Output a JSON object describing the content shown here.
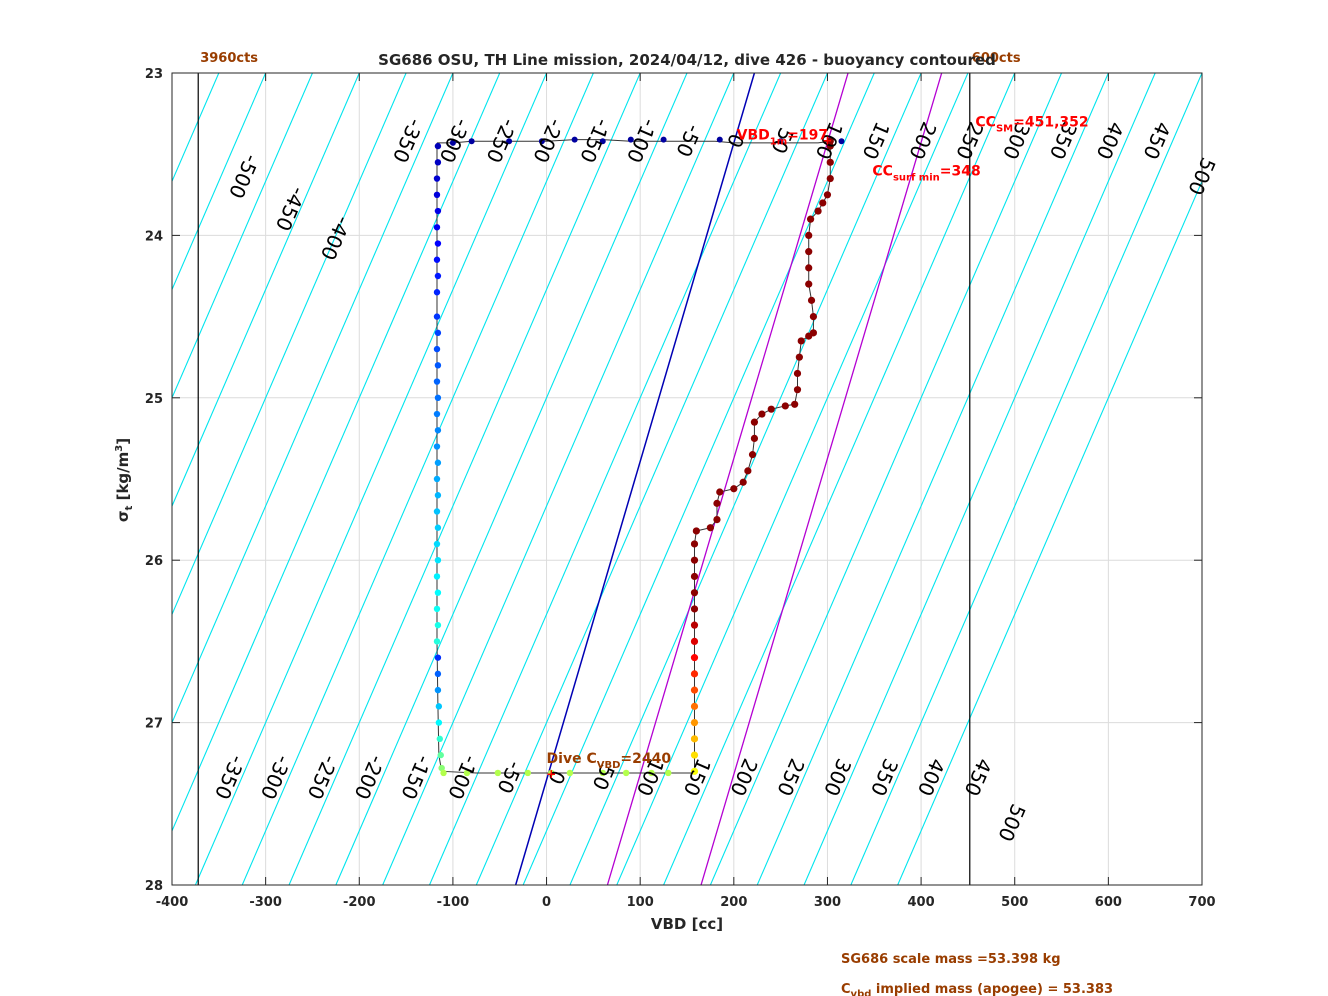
{
  "chart_data": {
    "type": "scatter",
    "title": "SG686 OSU, TH Line mission, 2024/04/12, dive 426 - buoyancy contoured",
    "xlabel": "VBD [cc]",
    "ylabel_main": "σ",
    "ylabel_sub": "t",
    "ylabel_unit": " [kg/m",
    "ylabel_sup": "3",
    "ylabel_close": "]",
    "xlim": [
      -400,
      700
    ],
    "ylim": [
      23,
      28
    ],
    "y_reversed": true,
    "grid": true,
    "xticks": [
      -400,
      -300,
      -200,
      -100,
      0,
      100,
      200,
      300,
      400,
      500,
      600,
      700
    ],
    "yticks": [
      23,
      24,
      25,
      26,
      27,
      28
    ],
    "vlines": [
      {
        "x": -372,
        "label": "3960cts"
      },
      {
        "x": 452,
        "label": "600cts"
      }
    ],
    "contour_slope_per_sigma": -75,
    "contour_levels": [
      -550,
      -500,
      -450,
      -400,
      -350,
      -300,
      -250,
      -200,
      -150,
      -100,
      -50,
      0,
      50,
      100,
      150,
      200,
      250,
      300,
      350,
      400,
      450,
      500,
      550,
      600,
      650,
      700,
      750
    ],
    "top_contour_labels": [
      {
        "level": -500,
        "x": -330,
        "y": 23.62
      },
      {
        "level": -450,
        "x": -280,
        "y": 23.82
      },
      {
        "level": -400,
        "x": -232,
        "y": 24.0
      },
      {
        "level": -350,
        "x": -155,
        "y": 23.4
      },
      {
        "level": -300,
        "x": -105,
        "y": 23.4
      },
      {
        "level": -250,
        "x": -55,
        "y": 23.4
      },
      {
        "level": -200,
        "x": -5,
        "y": 23.4
      },
      {
        "level": -150,
        "x": 45,
        "y": 23.4
      },
      {
        "level": -100,
        "x": 95,
        "y": 23.4
      },
      {
        "level": -50,
        "x": 145,
        "y": 23.4
      },
      {
        "level": 0,
        "x": 195,
        "y": 23.4
      },
      {
        "level": 50,
        "x": 245,
        "y": 23.4
      },
      {
        "level": 100,
        "x": 295,
        "y": 23.4
      },
      {
        "level": 150,
        "x": 345,
        "y": 23.4
      },
      {
        "level": 200,
        "x": 395,
        "y": 23.4
      },
      {
        "level": 250,
        "x": 445,
        "y": 23.4
      },
      {
        "level": 300,
        "x": 495,
        "y": 23.4
      },
      {
        "level": 350,
        "x": 545,
        "y": 23.4
      },
      {
        "level": 400,
        "x": 595,
        "y": 23.4
      },
      {
        "level": 450,
        "x": 645,
        "y": 23.4
      },
      {
        "level": 500,
        "x": 693,
        "y": 23.62
      }
    ],
    "bottom_contour_labels": [
      {
        "level": -350,
        "x": -345,
        "y": 27.32
      },
      {
        "level": -300,
        "x": -296,
        "y": 27.32
      },
      {
        "level": -250,
        "x": -246,
        "y": 27.32
      },
      {
        "level": -200,
        "x": -196,
        "y": 27.32
      },
      {
        "level": -150,
        "x": -146,
        "y": 27.32
      },
      {
        "level": -100,
        "x": -96,
        "y": 27.32
      },
      {
        "level": -50,
        "x": -46,
        "y": 27.32
      },
      {
        "level": 0,
        "x": 4,
        "y": 27.32
      },
      {
        "level": 50,
        "x": 54,
        "y": 27.32
      },
      {
        "level": 100,
        "x": 104,
        "y": 27.32
      },
      {
        "level": 150,
        "x": 154,
        "y": 27.32
      },
      {
        "level": 200,
        "x": 204,
        "y": 27.32
      },
      {
        "level": 250,
        "x": 254,
        "y": 27.32
      },
      {
        "level": 300,
        "x": 304,
        "y": 27.32
      },
      {
        "level": 350,
        "x": 354,
        "y": 27.32
      },
      {
        "level": 400,
        "x": 404,
        "y": 27.32
      },
      {
        "level": 450,
        "x": 454,
        "y": 27.32
      },
      {
        "level": 500,
        "x": 490,
        "y": 27.6
      }
    ],
    "blue_line": {
      "x1": -33,
      "y1": 28.0,
      "x2": 222,
      "y2": 23.0
    },
    "purple_lines": [
      {
        "x1": 65,
        "y1": 28.0,
        "x2": 322,
        "y2": 23.0
      },
      {
        "x1": 165,
        "y1": 28.0,
        "x2": 422,
        "y2": 23.0
      }
    ],
    "dive_profile": [
      [
        -117,
        23.43
      ],
      [
        -117,
        24.5
      ],
      [
        -117,
        25.5
      ],
      [
        -117,
        26.5
      ],
      [
        -116,
        26.9
      ],
      [
        -115,
        27.2
      ],
      [
        -112,
        27.3
      ],
      [
        -75,
        27.31
      ],
      [
        -20,
        27.31
      ],
      [
        40,
        27.31
      ],
      [
        100,
        27.31
      ],
      [
        155,
        27.31
      ]
    ],
    "dive_points": [
      [
        -116,
        23.45
      ],
      [
        -116,
        23.55
      ],
      [
        -117,
        23.65
      ],
      [
        -117,
        23.75
      ],
      [
        -116,
        23.85
      ],
      [
        -117,
        23.95
      ],
      [
        -116,
        24.05
      ],
      [
        -117,
        24.15
      ],
      [
        -116,
        24.25
      ],
      [
        -117,
        24.35
      ],
      [
        -117,
        24.5
      ],
      [
        -116,
        24.6
      ],
      [
        -117,
        24.7
      ],
      [
        -116,
        24.8
      ],
      [
        -117,
        24.9
      ],
      [
        -116,
        25.0
      ],
      [
        -117,
        25.1
      ],
      [
        -116,
        25.2
      ],
      [
        -117,
        25.3
      ],
      [
        -116,
        25.4
      ],
      [
        -117,
        25.5
      ],
      [
        -116,
        25.6
      ],
      [
        -117,
        25.7
      ],
      [
        -116,
        25.8
      ],
      [
        -117,
        25.9
      ],
      [
        -116,
        26.0
      ],
      [
        -117,
        26.1
      ],
      [
        -116,
        26.2
      ],
      [
        -117,
        26.3
      ],
      [
        -116,
        26.4
      ],
      [
        -117,
        26.5
      ],
      [
        -116,
        26.6
      ],
      [
        -116,
        26.7
      ],
      [
        -116,
        26.8
      ],
      [
        -115,
        26.9
      ],
      [
        -115,
        27.0
      ],
      [
        -114,
        27.1
      ],
      [
        -113,
        27.2
      ],
      [
        -112,
        27.28
      ],
      [
        -110,
        27.31
      ],
      [
        -85,
        27.31
      ],
      [
        -52,
        27.31
      ],
      [
        -20,
        27.31
      ],
      [
        5,
        27.31
      ],
      [
        25,
        27.31
      ],
      [
        60,
        27.31
      ],
      [
        85,
        27.31
      ],
      [
        112,
        27.31
      ],
      [
        130,
        27.31
      ]
    ],
    "climb_points": [
      [
        158,
        27.3
      ],
      [
        158,
        27.2
      ],
      [
        158,
        27.1
      ],
      [
        158,
        27.0
      ],
      [
        158,
        26.9
      ],
      [
        158,
        26.8
      ],
      [
        158,
        26.7
      ],
      [
        158,
        26.6
      ],
      [
        158,
        26.5
      ],
      [
        158,
        26.4
      ],
      [
        158,
        26.3
      ],
      [
        158,
        26.2
      ],
      [
        158,
        26.1
      ],
      [
        158,
        26.0
      ],
      [
        158,
        25.9
      ],
      [
        160,
        25.82
      ],
      [
        175,
        25.8
      ],
      [
        182,
        25.75
      ],
      [
        182,
        25.65
      ],
      [
        185,
        25.58
      ],
      [
        200,
        25.56
      ],
      [
        210,
        25.52
      ],
      [
        215,
        25.45
      ],
      [
        220,
        25.35
      ],
      [
        222,
        25.25
      ],
      [
        222,
        25.15
      ],
      [
        230,
        25.1
      ],
      [
        240,
        25.07
      ],
      [
        255,
        25.05
      ],
      [
        265,
        25.04
      ],
      [
        268,
        24.95
      ],
      [
        268,
        24.85
      ],
      [
        270,
        24.75
      ],
      [
        272,
        24.65
      ],
      [
        280,
        24.62
      ],
      [
        285,
        24.6
      ],
      [
        285,
        24.5
      ],
      [
        283,
        24.4
      ],
      [
        280,
        24.3
      ],
      [
        280,
        24.2
      ],
      [
        280,
        24.1
      ],
      [
        280,
        24.0
      ],
      [
        282,
        23.9
      ],
      [
        290,
        23.85
      ],
      [
        295,
        23.8
      ],
      [
        300,
        23.75
      ],
      [
        303,
        23.65
      ],
      [
        303,
        23.55
      ],
      [
        303,
        23.45
      ],
      [
        303,
        23.42
      ],
      [
        290,
        23.43
      ],
      [
        270,
        23.43
      ],
      [
        240,
        23.43
      ],
      [
        200,
        23.43
      ],
      [
        180,
        23.42
      ],
      [
        150,
        23.42
      ],
      [
        120,
        23.42
      ],
      [
        90,
        23.42
      ],
      [
        60,
        23.41
      ],
      [
        30,
        23.41
      ],
      [
        0,
        23.42
      ],
      [
        -30,
        23.42
      ],
      [
        -60,
        23.42
      ],
      [
        -80,
        23.42
      ],
      [
        -100,
        23.43
      ],
      [
        -117,
        23.43
      ]
    ],
    "top_points": [
      [
        -100,
        23.43
      ],
      [
        -80,
        23.42
      ],
      [
        -40,
        23.42
      ],
      [
        -5,
        23.42
      ],
      [
        30,
        23.41
      ],
      [
        60,
        23.42
      ],
      [
        90,
        23.41
      ],
      [
        125,
        23.41
      ],
      [
        185,
        23.41
      ],
      [
        250,
        23.42
      ],
      [
        315,
        23.42
      ]
    ],
    "annotations": [
      {
        "id": "vbd1m",
        "text": "VBD",
        "sub": "1m",
        "suffix": "=197",
        "x": 203,
        "y": 23.41,
        "color": "red"
      },
      {
        "id": "ccsm",
        "text": "CC",
        "sub": "SM",
        "suffix": "=451,352",
        "x": 458,
        "y": 23.33,
        "color": "red"
      },
      {
        "id": "ccsurf",
        "text": "CC",
        "sub": "surf min",
        "suffix": "=348",
        "x": 348,
        "y": 23.63,
        "color": "red"
      },
      {
        "id": "divec",
        "text": "Dive C",
        "sub": "VBD",
        "suffix": "=2440",
        "x": 0,
        "y": 27.25,
        "color": "brown"
      }
    ],
    "footer": [
      "SG686 scale mass =53.398 kg",
      "C",
      "vbd",
      " implied mass (apogee) = 53.383"
    ]
  }
}
